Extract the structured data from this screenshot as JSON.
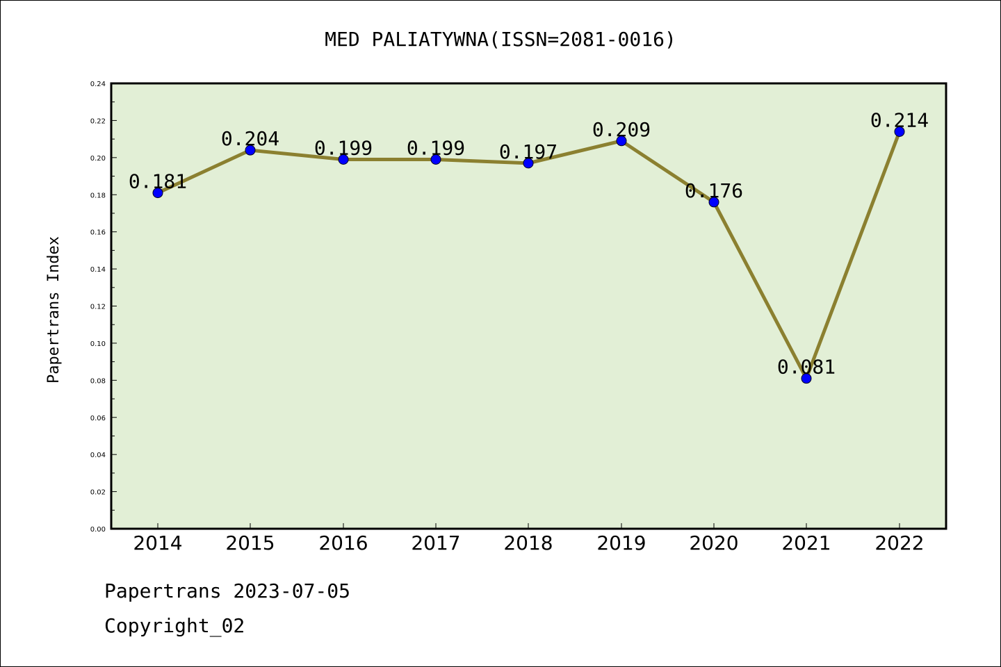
{
  "chart_data": {
    "type": "line",
    "title": "MED PALIATYWNA(ISSN=2081-0016)",
    "xlabel": "",
    "ylabel": "Papertrans Index",
    "categories": [
      "2014",
      "2015",
      "2016",
      "2017",
      "2018",
      "2019",
      "2020",
      "2021",
      "2022"
    ],
    "series": [
      {
        "values": [
          0.181,
          0.204,
          0.199,
          0.199,
          0.197,
          0.209,
          0.176,
          0.081,
          0.214
        ]
      }
    ],
    "data_labels": [
      "0.181",
      "0.204",
      "0.199",
      "0.199",
      "0.197",
      "0.209",
      "0.176",
      "0.081",
      "0.214"
    ],
    "ylim": [
      0,
      0.24
    ],
    "yticks": [
      "0.00",
      "0.02",
      "0.04",
      "0.06",
      "0.08",
      "0.10",
      "0.12",
      "0.14",
      "0.16",
      "0.18",
      "0.20",
      "0.22",
      "0.24"
    ],
    "grid": false,
    "colors": {
      "plot_bg": "#e2efd6",
      "line": "#8b8030",
      "marker": "#0000ff"
    }
  },
  "footer": {
    "line1": "Papertrans 2023-07-05",
    "line2": "Copyright_02"
  }
}
